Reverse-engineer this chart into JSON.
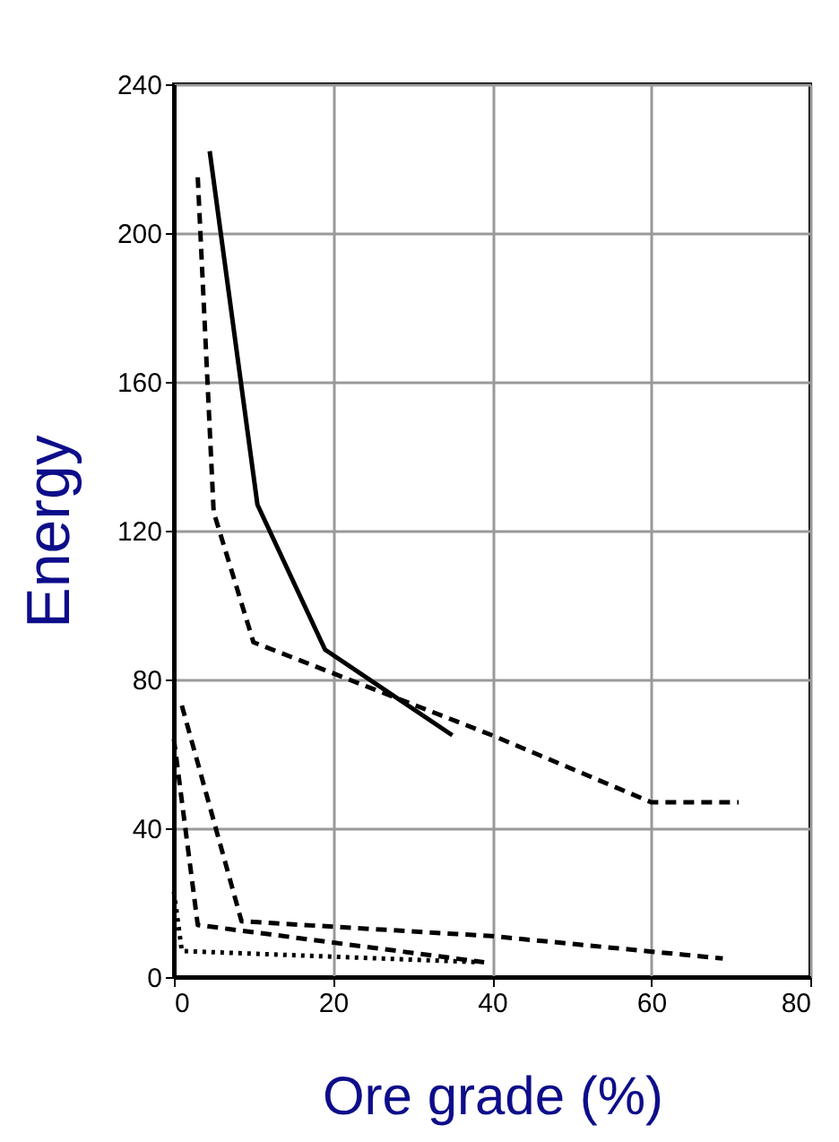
{
  "chart_data": {
    "type": "line",
    "xlabel": "Ore grade (%)",
    "ylabel": "Energy",
    "xlim": [
      0,
      80
    ],
    "xticks": [
      0,
      20,
      40,
      60,
      80
    ],
    "ylim": [
      0,
      240
    ],
    "yticks": [
      0,
      40,
      80,
      120,
      160,
      200,
      240
    ],
    "grid": true,
    "legend": false,
    "marker": "none",
    "series": [
      {
        "color": "#000000",
        "line_style": "solid",
        "x": [
          4.5,
          10.5,
          19,
          35
        ],
        "values": [
          222,
          127,
          88,
          65
        ]
      },
      {
        "color": "#000000",
        "line_style": "dashed",
        "x": [
          3,
          5,
          10,
          40,
          60,
          71
        ],
        "values": [
          215,
          125,
          90,
          65,
          47,
          47
        ]
      },
      {
        "color": "#000000",
        "line_style": "dashed",
        "x": [
          1,
          8.5,
          40,
          69
        ],
        "values": [
          73,
          15,
          11,
          5
        ]
      },
      {
        "color": "#000000",
        "line_style": "dashed",
        "x": [
          0,
          3,
          39
        ],
        "values": [
          64,
          14,
          4
        ]
      },
      {
        "color": "#000000",
        "line_style": "dotted",
        "x": [
          0,
          1,
          38.5
        ],
        "values": [
          23,
          7,
          4
        ]
      }
    ]
  }
}
